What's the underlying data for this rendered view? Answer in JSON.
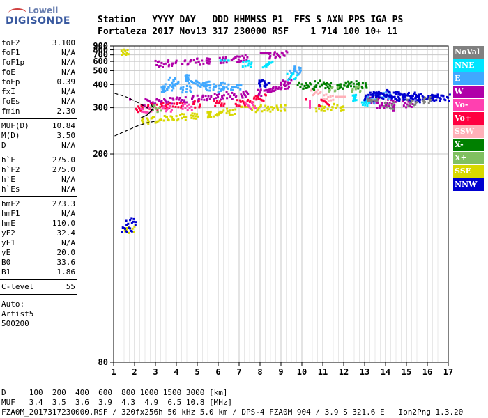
{
  "logo": {
    "line1": "Lowell",
    "line2": "DIGISONDE"
  },
  "header": {
    "line1": "Station   YYYY DAY   DDD HHMMSS P1  FFS S AXN PPS IGA PS",
    "line2": "Fortaleza 2017 Nov13 317 230000 RSF    1 714 100 10+ 11"
  },
  "params": {
    "group1": [
      {
        "k": "foF2",
        "v": "3.100"
      },
      {
        "k": "foF1",
        "v": "N/A"
      },
      {
        "k": "foF1p",
        "v": "N/A"
      },
      {
        "k": "foE",
        "v": "N/A"
      },
      {
        "k": "foEp",
        "v": "0.39"
      },
      {
        "k": "fxI",
        "v": "N/A"
      },
      {
        "k": "foEs",
        "v": "N/A"
      },
      {
        "k": "fmin",
        "v": "2.30"
      }
    ],
    "group2": [
      {
        "k": "MUF(D)",
        "v": "10.84"
      },
      {
        "k": "M(D)",
        "v": "3.50"
      },
      {
        "k": "D",
        "v": "N/A"
      }
    ],
    "group3": [
      {
        "k": "h`F",
        "v": "275.0"
      },
      {
        "k": "h`F2",
        "v": "275.0"
      },
      {
        "k": "h`E",
        "v": "N/A"
      },
      {
        "k": "h`Es",
        "v": "N/A"
      }
    ],
    "group4": [
      {
        "k": "hmF2",
        "v": "273.3"
      },
      {
        "k": "hmF1",
        "v": "N/A"
      },
      {
        "k": "hmE",
        "v": "110.0"
      },
      {
        "k": "yF2",
        "v": "32.4"
      },
      {
        "k": "yF1",
        "v": "N/A"
      },
      {
        "k": "yE",
        "v": "20.0"
      },
      {
        "k": "B0",
        "v": "33.6"
      },
      {
        "k": "B1",
        "v": "1.86"
      }
    ],
    "clevel": {
      "k": "C-level",
      "v": "55"
    },
    "auto": [
      "Auto:",
      "Artist5",
      "500200"
    ]
  },
  "legend": [
    {
      "label": "NoVal",
      "bg": "#808080",
      "fg": "#ffffff"
    },
    {
      "label": "NNE",
      "bg": "#00e5ff",
      "fg": "#ffffff"
    },
    {
      "label": "E",
      "bg": "#40a8ff",
      "fg": "#ffffff"
    },
    {
      "label": "W",
      "bg": "#b000a8",
      "fg": "#ffffff"
    },
    {
      "label": "Vo-",
      "bg": "#ff40b0",
      "fg": "#ffffff"
    },
    {
      "label": "Vo+",
      "bg": "#ff0040",
      "fg": "#ffffff"
    },
    {
      "label": "SSW",
      "bg": "#ffb0b8",
      "fg": "#ffffff"
    },
    {
      "label": "X-",
      "bg": "#008000",
      "fg": "#ffffff"
    },
    {
      "label": "X+",
      "bg": "#80c060",
      "fg": "#ffffff"
    },
    {
      "label": "SSE",
      "bg": "#d8d800",
      "fg": "#ffffff"
    },
    {
      "label": "NNW",
      "bg": "#0000d0",
      "fg": "#ffffff"
    }
  ],
  "footer": {
    "line1": "D     100  200  400  600  800 1000 1500 3000 [km]",
    "line2": "MUF   3.4  3.5  3.6  3.9  4.3  4.9  6.5 10.8 [MHz]",
    "line3": "FZA0M_2017317230000.RSF / 320fx256h 50 kHz 5.0 km / DPS-4 FZA0M 904 / 3.9 S 321.6 E   Ion2Png 1.3.20"
  },
  "chart_data": {
    "type": "scatter",
    "xlim": [
      1,
      17
    ],
    "ylim": [
      80,
      900
    ],
    "xticks": [
      "1",
      "2",
      "3",
      "4",
      "5",
      "6",
      "7",
      "8",
      "9",
      "10",
      "11",
      "12",
      "13",
      "14",
      "15",
      "16",
      "17"
    ],
    "yticks": [
      "80",
      "200",
      "300",
      "400",
      "500",
      "600",
      "700",
      "800",
      "900"
    ],
    "yscale": "reciprocal",
    "grid": true,
    "series": [
      {
        "name": "W",
        "color": "#b000a8",
        "points": [
          [
            2.0,
            320
          ],
          [
            2.6,
            322
          ],
          [
            3.0,
            325
          ],
          [
            3.6,
            328
          ],
          [
            4.2,
            332
          ],
          [
            4.8,
            336
          ],
          [
            5.4,
            340
          ],
          [
            6.0,
            345
          ],
          [
            6.6,
            350
          ],
          [
            7.2,
            355
          ],
          [
            7.8,
            362
          ],
          [
            8.4,
            372
          ],
          [
            8.8,
            385
          ],
          [
            9.1,
            400
          ],
          [
            9.2,
            420
          ],
          [
            3.2,
            580
          ],
          [
            3.8,
            590
          ],
          [
            4.4,
            600
          ],
          [
            5.0,
            610
          ],
          [
            5.6,
            620
          ],
          [
            6.2,
            630
          ],
          [
            6.8,
            645
          ],
          [
            7.1,
            655
          ],
          [
            8.2,
            690
          ],
          [
            8.6,
            710
          ],
          [
            9.0,
            730
          ],
          [
            13.4,
            330
          ],
          [
            13.8,
            310
          ],
          [
            14.2,
            320
          ],
          [
            14.6,
            300
          ],
          [
            15.0,
            315
          ]
        ]
      },
      {
        "name": "SSE",
        "color": "#d8d800",
        "points": [
          [
            2.4,
            265
          ],
          [
            3.0,
            268
          ],
          [
            3.6,
            272
          ],
          [
            4.2,
            275
          ],
          [
            4.8,
            278
          ],
          [
            5.4,
            282
          ],
          [
            6.0,
            285
          ],
          [
            6.6,
            290
          ],
          [
            7.2,
            295
          ],
          [
            7.8,
            300
          ],
          [
            8.4,
            300
          ],
          [
            9.0,
            302
          ],
          [
            10.8,
            300
          ],
          [
            11.4,
            305
          ],
          [
            12.0,
            300
          ],
          [
            1.5,
            765
          ],
          [
            1.7,
            130
          ]
        ]
      },
      {
        "name": "E",
        "color": "#40a8ff",
        "points": [
          [
            3.2,
            380
          ],
          [
            3.6,
            390
          ],
          [
            4.0,
            400
          ],
          [
            4.4,
            380
          ],
          [
            4.8,
            420
          ],
          [
            5.2,
            400
          ],
          [
            5.6,
            390
          ],
          [
            6.0,
            380
          ],
          [
            3.8,
            430
          ],
          [
            4.6,
            450
          ],
          [
            5.4,
            410
          ],
          [
            6.2,
            400
          ],
          [
            6.8,
            390
          ],
          [
            9.6,
            500
          ],
          [
            9.8,
            520
          ],
          [
            13.2,
            330
          ],
          [
            13.6,
            340
          ],
          [
            14.0,
            350
          ]
        ]
      },
      {
        "name": "NNE",
        "color": "#00e5ff",
        "points": [
          [
            9.5,
            460
          ],
          [
            6.3,
            580
          ],
          [
            7.3,
            580
          ],
          [
            8.3,
            575
          ],
          [
            12.6,
            340
          ],
          [
            13.0,
            320
          ]
        ]
      },
      {
        "name": "Vo+",
        "color": "#ff0040",
        "points": [
          [
            2.2,
            300
          ],
          [
            2.8,
            305
          ],
          [
            3.4,
            310
          ],
          [
            4.0,
            312
          ],
          [
            5.0,
            315
          ],
          [
            6.0,
            318
          ],
          [
            7.0,
            320
          ],
          [
            7.6,
            330
          ],
          [
            8.0,
            340
          ],
          [
            10.4,
            320
          ],
          [
            11.0,
            320
          ]
        ]
      },
      {
        "name": "Vo-",
        "color": "#ff40b0",
        "points": [
          [
            2.5,
            295
          ],
          [
            3.5,
            300
          ],
          [
            4.5,
            305
          ],
          [
            7.5,
            310
          ],
          [
            10.6,
            315
          ]
        ]
      },
      {
        "name": "SSW",
        "color": "#ffb0b8",
        "points": [
          [
            10.6,
            365
          ],
          [
            11.2,
            340
          ],
          [
            11.8,
            330
          ]
        ]
      },
      {
        "name": "X-",
        "color": "#008000",
        "points": [
          [
            10.0,
            400
          ],
          [
            10.4,
            395
          ],
          [
            10.8,
            410
          ],
          [
            11.2,
            400
          ],
          [
            11.6,
            395
          ],
          [
            12.0,
            400
          ],
          [
            12.4,
            410
          ],
          [
            12.8,
            400
          ]
        ]
      },
      {
        "name": "X+",
        "color": "#80c060",
        "points": [
          [
            3.0,
            300
          ],
          [
            11.5,
            380
          ],
          [
            12.5,
            380
          ]
        ]
      },
      {
        "name": "NNW",
        "color": "#0000d0",
        "points": [
          [
            13.2,
            340
          ],
          [
            13.4,
            355
          ],
          [
            13.6,
            350
          ],
          [
            13.8,
            345
          ],
          [
            14.0,
            360
          ],
          [
            14.2,
            350
          ],
          [
            14.4,
            340
          ],
          [
            14.6,
            355
          ],
          [
            14.8,
            345
          ],
          [
            15.0,
            340
          ],
          [
            15.2,
            350
          ],
          [
            15.4,
            335
          ],
          [
            15.6,
            345
          ],
          [
            15.8,
            340
          ],
          [
            16.0,
            335
          ],
          [
            16.2,
            345
          ],
          [
            16.4,
            340
          ],
          [
            16.8,
            340
          ],
          [
            8.0,
            410
          ],
          [
            8.2,
            415
          ],
          [
            1.6,
            130
          ],
          [
            1.8,
            135
          ]
        ]
      },
      {
        "name": "NoVal",
        "color": "#808080",
        "points": [
          [
            13.3,
            330
          ],
          [
            14.1,
            310
          ],
          [
            15.2,
            320
          ],
          [
            16.0,
            330
          ]
        ]
      }
    ],
    "curves": [
      {
        "name": "profile-upper",
        "color": "#000000",
        "dashed": true,
        "points": [
          [
            1.05,
            355
          ],
          [
            1.6,
            340
          ],
          [
            2.1,
            320
          ],
          [
            2.6,
            300
          ],
          [
            3.0,
            290
          ]
        ]
      },
      {
        "name": "profile-lower",
        "color": "#000000",
        "dashed": true,
        "points": [
          [
            1.05,
            230
          ],
          [
            1.6,
            240
          ],
          [
            2.1,
            250
          ],
          [
            2.6,
            258
          ],
          [
            3.0,
            262
          ]
        ]
      },
      {
        "name": "profile-solid",
        "color": "#000000",
        "dashed": false,
        "points": [
          [
            2.3,
            270
          ],
          [
            2.6,
            278
          ],
          [
            2.8,
            290
          ],
          [
            2.9,
            300
          ],
          [
            2.8,
            310
          ]
        ]
      }
    ]
  }
}
